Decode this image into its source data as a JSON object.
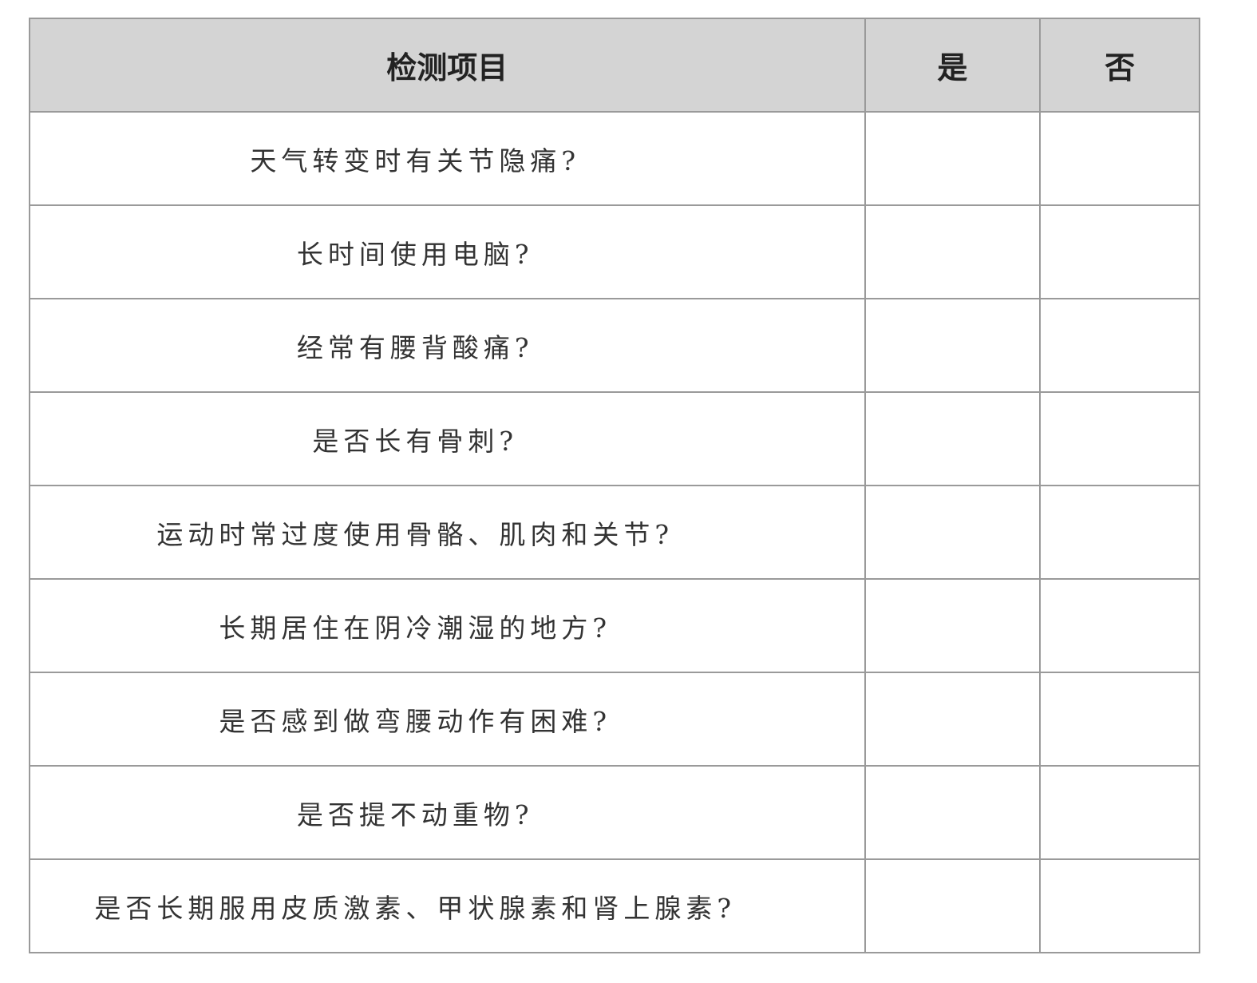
{
  "table": {
    "headers": [
      "检测项目",
      "是",
      "否"
    ],
    "rows": [
      "天气转变时有关节隐痛?",
      "长时间使用电脑?",
      "经常有腰背酸痛?",
      "是否长有骨刺?",
      "运动时常过度使用骨骼、肌肉和关节?",
      "长期居住在阴冷潮湿的地方?",
      "是否感到做弯腰动作有困难?",
      "是否提不动重物?",
      "是否长期服用皮质激素、甲状腺素和肾上腺素?"
    ]
  }
}
